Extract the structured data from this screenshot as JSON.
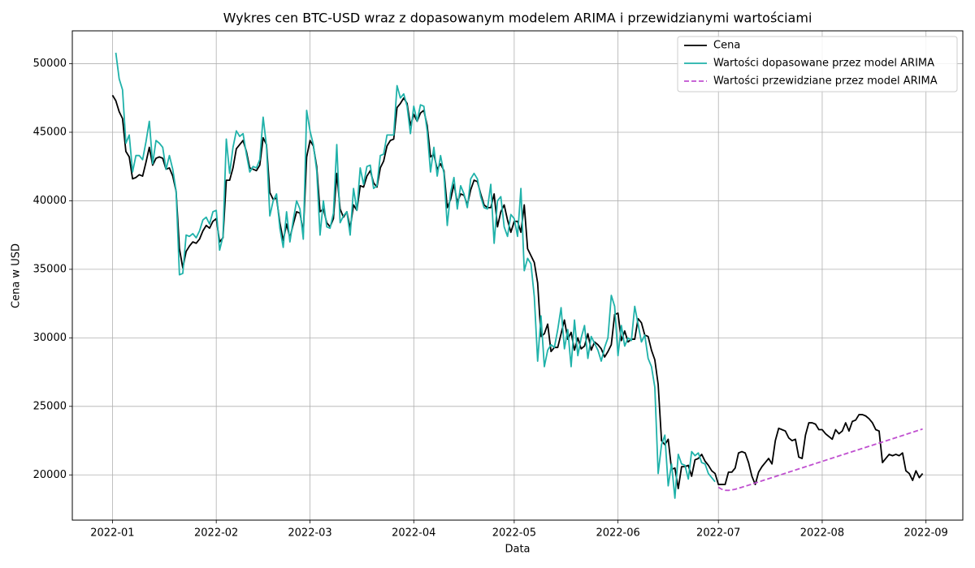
{
  "chart_data": {
    "type": "line",
    "title": "Wykres cen BTC-USD wraz z dopasowanym modelem ARIMA i przewidzianymi wartościami",
    "x_label": "Data",
    "y_label": "Cena w USD",
    "xlim": [
      -12,
      254
    ],
    "ylim": [
      16700,
      52400
    ],
    "xticks": [
      {
        "value": 0,
        "label": "2022-01"
      },
      {
        "value": 31,
        "label": "2022-02"
      },
      {
        "value": 59,
        "label": "2022-03"
      },
      {
        "value": 90,
        "label": "2022-04"
      },
      {
        "value": 120,
        "label": "2022-05"
      },
      {
        "value": 151,
        "label": "2022-06"
      },
      {
        "value": 181,
        "label": "2022-07"
      },
      {
        "value": 212,
        "label": "2022-08"
      },
      {
        "value": 243,
        "label": "2022-09"
      }
    ],
    "yticks": [
      20000,
      25000,
      30000,
      35000,
      40000,
      45000,
      50000
    ],
    "grid": true,
    "legend": "upper right",
    "series": [
      {
        "name": "Cena",
        "color": "#000000",
        "linestyle": "solid",
        "x": [
          0,
          1,
          2,
          3,
          4,
          5,
          6,
          7,
          8,
          9,
          10,
          11,
          12,
          13,
          14,
          15,
          16,
          17,
          18,
          19,
          20,
          21,
          22,
          23,
          24,
          25,
          26,
          27,
          28,
          29,
          30,
          31,
          32,
          33,
          34,
          35,
          36,
          37,
          38,
          39,
          40,
          41,
          42,
          43,
          44,
          45,
          46,
          47,
          48,
          49,
          50,
          51,
          52,
          53,
          54,
          55,
          56,
          57,
          58,
          59,
          60,
          61,
          62,
          63,
          64,
          65,
          66,
          67,
          68,
          69,
          70,
          71,
          72,
          73,
          74,
          75,
          76,
          77,
          78,
          79,
          80,
          81,
          82,
          83,
          84,
          85,
          86,
          87,
          88,
          89,
          90,
          91,
          92,
          93,
          94,
          95,
          96,
          97,
          98,
          99,
          100,
          101,
          102,
          103,
          104,
          105,
          106,
          107,
          108,
          109,
          110,
          111,
          112,
          113,
          114,
          115,
          116,
          117,
          118,
          119,
          120,
          121,
          122,
          123,
          124,
          125,
          126,
          127,
          128,
          129,
          130,
          131,
          132,
          133,
          134,
          135,
          136,
          137,
          138,
          139,
          140,
          141,
          142,
          143,
          144,
          145,
          146,
          147,
          148,
          149,
          150,
          151,
          152,
          153,
          154,
          155,
          156,
          157,
          158,
          159,
          160,
          161,
          162,
          163,
          164,
          165,
          166,
          167,
          168,
          169,
          170,
          171,
          172,
          173,
          174,
          175,
          176,
          177,
          178,
          179,
          180,
          181,
          182,
          183,
          184,
          185,
          186,
          187,
          188,
          189,
          190,
          191,
          192,
          193,
          194,
          195,
          196,
          197,
          198,
          199,
          200,
          201,
          202,
          203,
          204,
          205,
          206,
          207,
          208,
          209,
          210,
          211,
          212,
          213,
          214,
          215,
          216,
          217,
          218,
          219,
          220,
          221,
          222,
          223,
          224,
          225,
          226,
          227,
          228,
          229,
          230,
          231,
          232,
          233,
          234,
          235,
          236,
          237,
          238,
          239,
          240,
          241,
          242
        ],
        "values": [
          47700,
          47300,
          46500,
          46000,
          43600,
          43200,
          41600,
          41700,
          41900,
          41800,
          42800,
          43900,
          42600,
          43100,
          43200,
          43100,
          42300,
          42400,
          41800,
          40700,
          36500,
          35100,
          36300,
          36700,
          37000,
          36900,
          37200,
          37800,
          38200,
          38000,
          38500,
          38700,
          37000,
          37300,
          41500,
          41500,
          42400,
          43800,
          44100,
          44400,
          43600,
          42400,
          42300,
          42200,
          42600,
          44600,
          44100,
          40600,
          40100,
          40200,
          38400,
          37100,
          38300,
          37300,
          38300,
          39200,
          39100,
          37700,
          43200,
          44400,
          44000,
          42500,
          39200,
          39400,
          38400,
          38100,
          38700,
          42000,
          39400,
          38800,
          39200,
          38000,
          39700,
          39300,
          41100,
          41000,
          41800,
          42200,
          41300,
          41000,
          42400,
          42900,
          44000,
          44400,
          44500,
          46800,
          47100,
          47500,
          47100,
          45500,
          46300,
          45800,
          46400,
          46600,
          45500,
          43200,
          43400,
          42300,
          42700,
          42200,
          39500,
          40100,
          41200,
          39900,
          40500,
          40400,
          39700,
          40800,
          41500,
          41400,
          40500,
          39700,
          39500,
          39500,
          40500,
          38100,
          39200,
          39700,
          38600,
          37700,
          38500,
          38500,
          37700,
          39700,
          36500,
          36000,
          35500,
          34000,
          30100,
          30300,
          31000,
          29000,
          29300,
          29300,
          30300,
          31300,
          29900,
          30400,
          29100,
          30000,
          29200,
          29400,
          30300,
          29100,
          29700,
          29500,
          29200,
          28600,
          29000,
          29500,
          31700,
          31800,
          29800,
          30500,
          29700,
          29900,
          29900,
          31400,
          31100,
          30200,
          30100,
          29100,
          28400,
          26600,
          22500,
          22200,
          22600,
          20400,
          20500,
          19000,
          20600,
          20600,
          20700,
          19900,
          21100,
          21200,
          21500,
          21000,
          20700,
          20300,
          20100,
          19300,
          19300,
          19300,
          20200,
          20200,
          20500,
          21600,
          21700,
          21600,
          20900,
          19900,
          19300,
          20200,
          20600,
          20900,
          21200,
          20800,
          22500,
          23400,
          23300,
          23200,
          22700,
          22500,
          22600,
          21300,
          21200,
          22900,
          23800,
          23800,
          23700,
          23300,
          23300,
          23000,
          22800,
          22600,
          23300,
          23000,
          23200,
          23800,
          23200,
          23900,
          24000,
          24400,
          24400,
          24300,
          24100,
          23800,
          23300,
          23200,
          20900,
          21200,
          21500,
          21400,
          21500,
          21400,
          21600,
          20300,
          20100,
          19600,
          20300,
          19800,
          20100
        ]
      },
      {
        "name": "Wartości dopasowane przez model ARIMA",
        "color": "#20b2aa",
        "linestyle": "solid",
        "x": [
          1,
          2,
          3,
          4,
          5,
          6,
          7,
          8,
          9,
          10,
          11,
          12,
          13,
          14,
          15,
          16,
          17,
          18,
          19,
          20,
          21,
          22,
          23,
          24,
          25,
          26,
          27,
          28,
          29,
          30,
          31,
          32,
          33,
          34,
          35,
          36,
          37,
          38,
          39,
          40,
          41,
          42,
          43,
          44,
          45,
          46,
          47,
          48,
          49,
          50,
          51,
          52,
          53,
          54,
          55,
          56,
          57,
          58,
          59,
          60,
          61,
          62,
          63,
          64,
          65,
          66,
          67,
          68,
          69,
          70,
          71,
          72,
          73,
          74,
          75,
          76,
          77,
          78,
          79,
          80,
          81,
          82,
          83,
          84,
          85,
          86,
          87,
          88,
          89,
          90,
          91,
          92,
          93,
          94,
          95,
          96,
          97,
          98,
          99,
          100,
          101,
          102,
          103,
          104,
          105,
          106,
          107,
          108,
          109,
          110,
          111,
          112,
          113,
          114,
          115,
          116,
          117,
          118,
          119,
          120,
          121,
          122,
          123,
          124,
          125,
          126,
          127,
          128,
          129,
          130,
          131,
          132,
          133,
          134,
          135,
          136,
          137,
          138,
          139,
          140,
          141,
          142,
          143,
          144,
          145,
          146,
          147,
          148,
          149,
          150,
          151,
          152,
          153,
          154,
          155,
          156,
          157,
          158,
          159,
          160,
          161,
          162,
          163,
          164,
          165,
          166,
          167,
          168,
          169,
          170,
          171,
          172,
          173,
          174,
          175,
          176,
          177,
          178,
          179,
          180
        ],
        "values": [
          50800,
          48900,
          48100,
          44200,
          44800,
          42100,
          43300,
          43300,
          43000,
          44300,
          45800,
          42700,
          44400,
          44200,
          43900,
          42300,
          43300,
          42300,
          40700,
          34600,
          34700,
          37500,
          37400,
          37600,
          37300,
          37800,
          38600,
          38800,
          38300,
          39200,
          39300,
          36400,
          37400,
          44500,
          42000,
          43900,
          45100,
          44700,
          44900,
          43400,
          42100,
          42500,
          42400,
          43000,
          46100,
          44000,
          38900,
          40000,
          40500,
          38000,
          36600,
          39200,
          37000,
          38600,
          40000,
          39400,
          37200,
          46600,
          45100,
          44100,
          42200,
          37500,
          40000,
          38100,
          38000,
          39100,
          44100,
          38400,
          38900,
          39200,
          37500,
          40900,
          39300,
          42400,
          41200,
          42500,
          42600,
          40900,
          41100,
          43300,
          43400,
          44800,
          44800,
          44800,
          48400,
          47500,
          47800,
          46900,
          44900,
          46900,
          45800,
          47000,
          46900,
          45100,
          42100,
          43900,
          41800,
          43300,
          42000,
          38200,
          40600,
          41700,
          39400,
          41100,
          40500,
          39500,
          41600,
          42000,
          41600,
          40300,
          39500,
          39400,
          41200,
          36900,
          40000,
          40300,
          38100,
          37400,
          39000,
          38700,
          37400,
          40900,
          34900,
          35800,
          35400,
          33000,
          28300,
          31600,
          27900,
          29100,
          29500,
          29300,
          30600,
          32200,
          29200,
          30600,
          27900,
          31300,
          28700,
          30000,
          30900,
          28500,
          30100,
          29600,
          29100,
          28300,
          29300,
          30000,
          33100,
          32300,
          28700,
          30900,
          29400,
          30000,
          29800,
          32300,
          31000,
          29700,
          30200,
          28500,
          27900,
          26400,
          20100,
          22200,
          22900,
          19200,
          20800,
          18300,
          21500,
          20800,
          20700,
          19700,
          21700,
          21400,
          21600,
          20900,
          20800,
          20100,
          19800,
          19500
        ]
      },
      {
        "name": "Wartości przewidziane przez model ARIMA",
        "color": "#c050d0",
        "linestyle": "dashed",
        "x": [
          181,
          182,
          183,
          184,
          186,
          188,
          190,
          200,
          210,
          220,
          230,
          242
        ],
        "values": [
          19100,
          18950,
          18880,
          18870,
          18950,
          19100,
          19250,
          20040,
          20830,
          21620,
          22400,
          23350
        ]
      }
    ]
  }
}
